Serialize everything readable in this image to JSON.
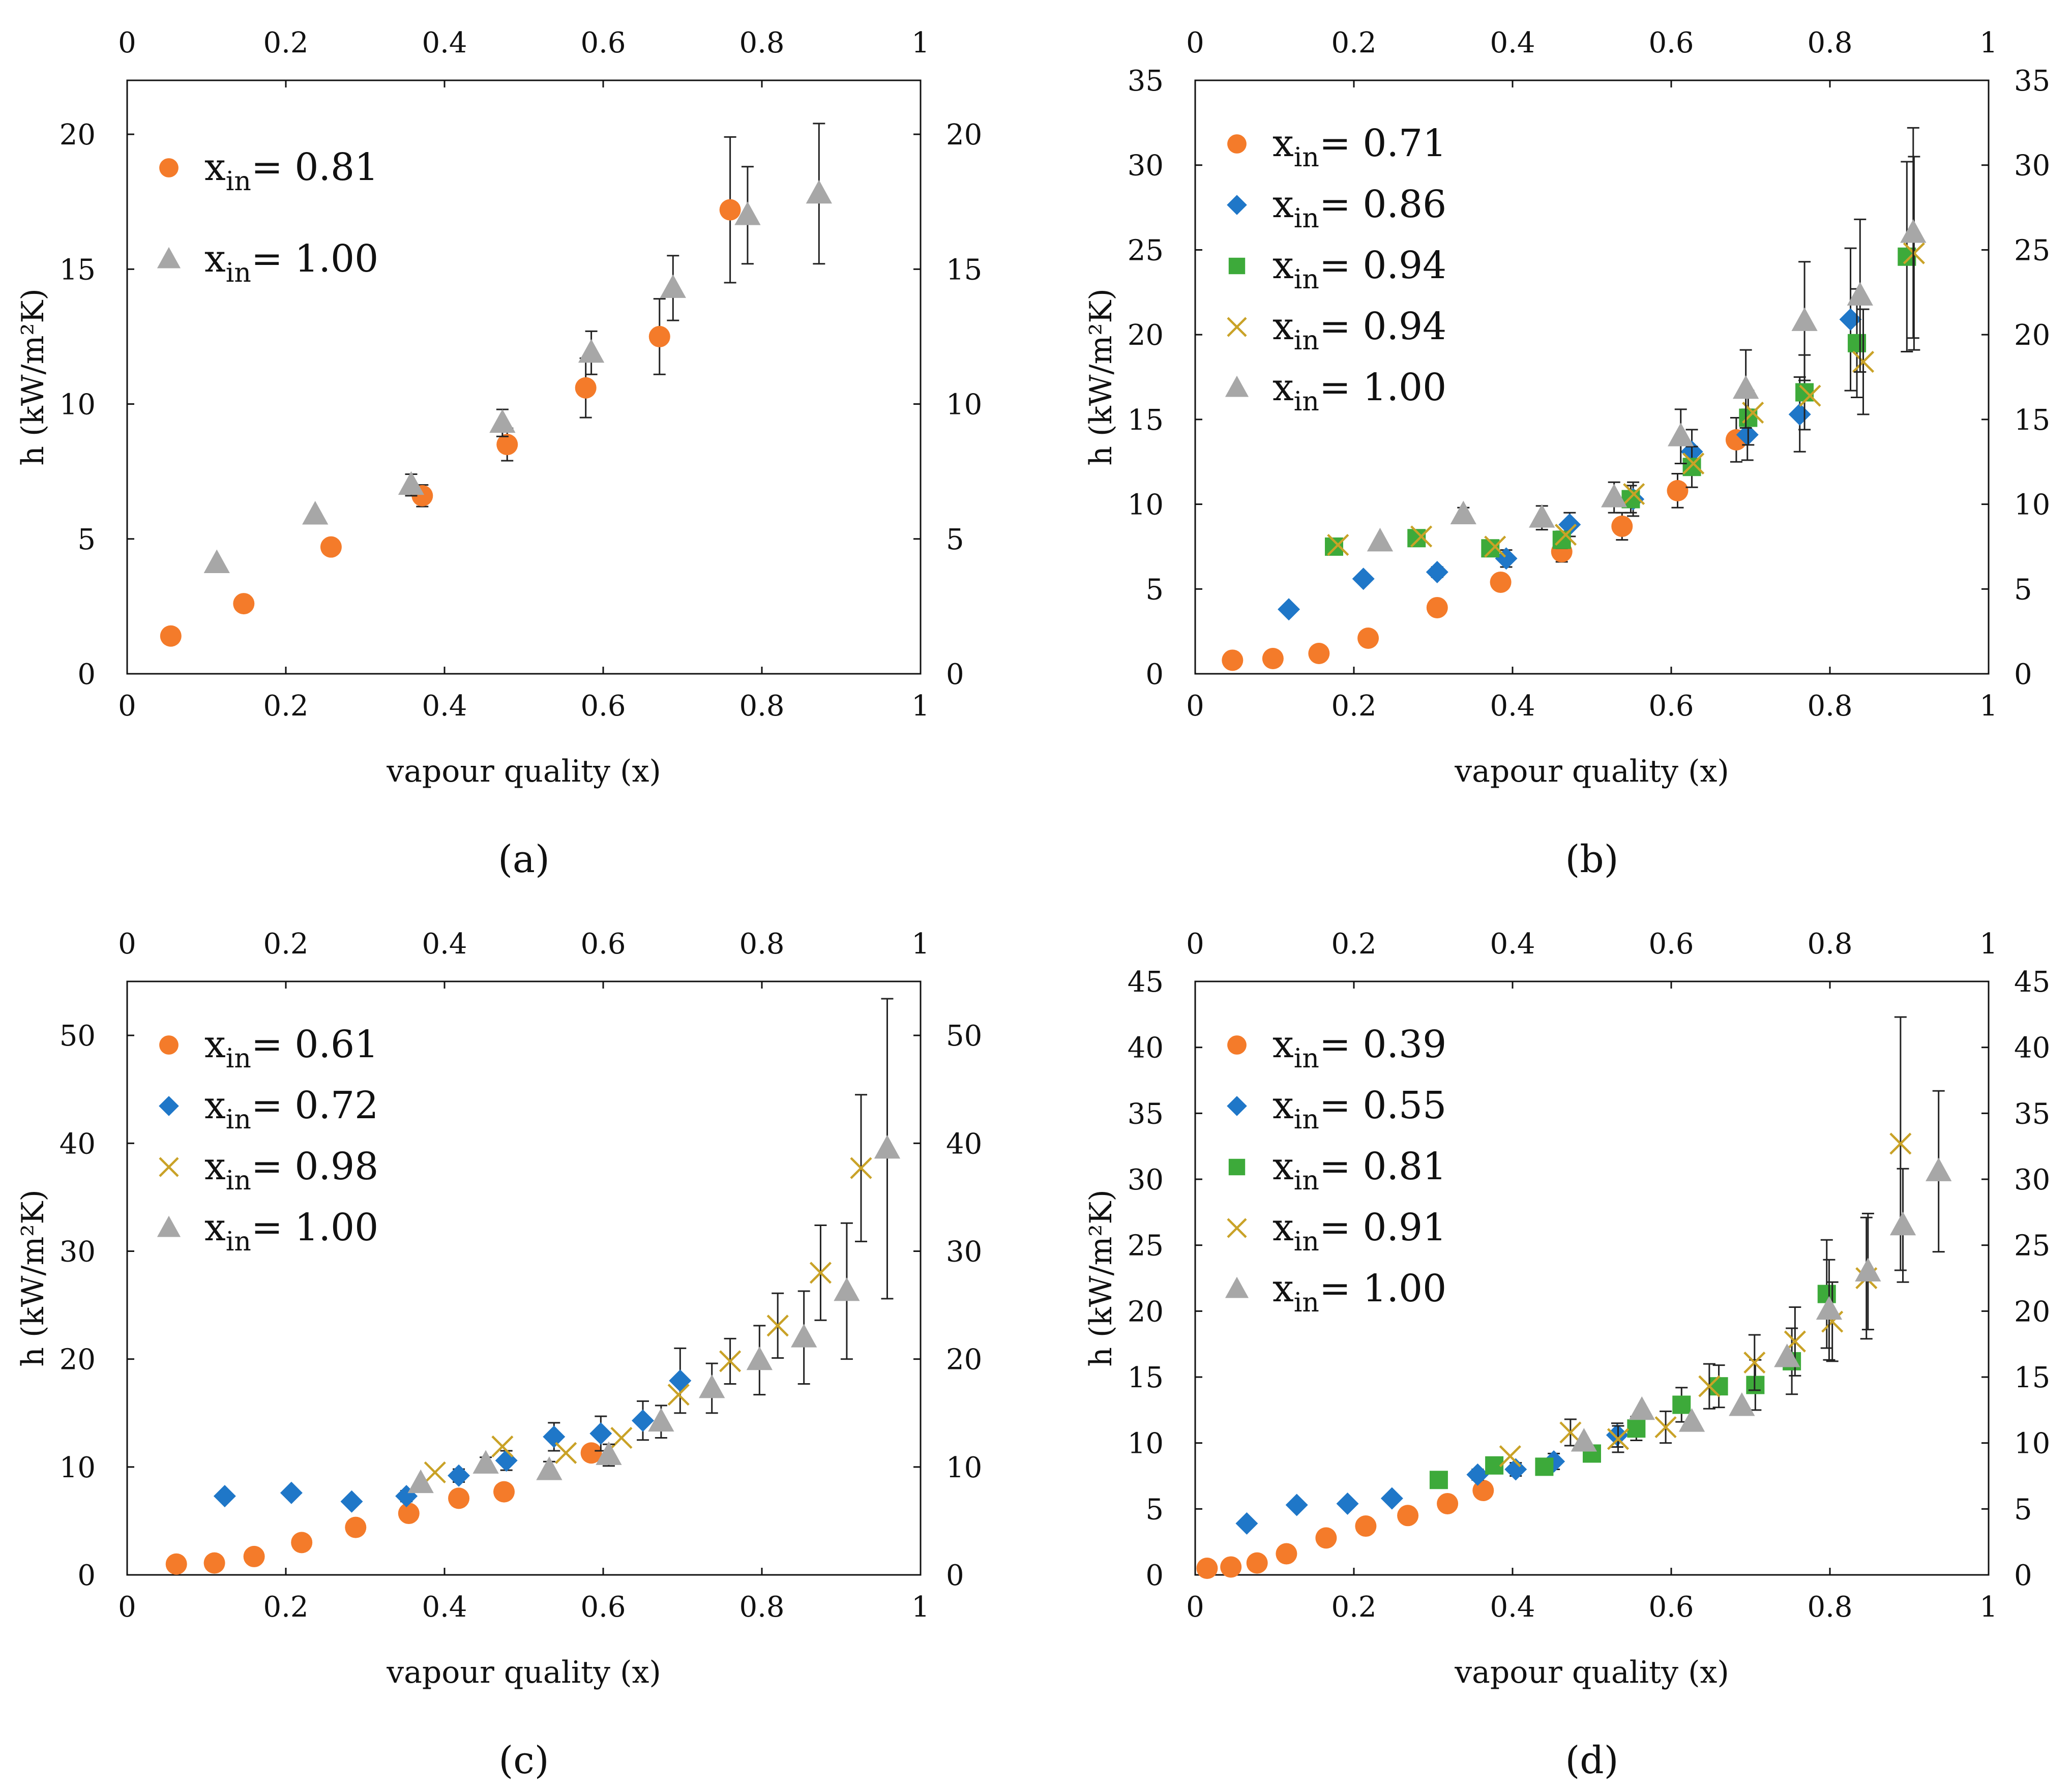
{
  "marker_colors": {
    "circle": "#F47B2A",
    "diamond": "#1F77C8",
    "square": "#3DAA3A",
    "cross": "#C9A227",
    "triangle": "#A7A7A7"
  },
  "chart_data": [
    {
      "type": "scatter",
      "panel": "a",
      "panel_label": "(a)",
      "xlabel": "vapour quality (x)",
      "ylabel": "h (kW/m²K)",
      "xlim": [
        0,
        1
      ],
      "ylim": [
        0,
        22
      ],
      "xticks": [
        0,
        0.2,
        0.4,
        0.6,
        0.8,
        1
      ],
      "yticks": [
        0,
        5,
        10,
        15,
        20
      ],
      "xtick_labels": [
        "0",
        "0.2",
        "0.4",
        "0.6",
        "0.8",
        "1"
      ],
      "ytick_labels": [
        "0",
        "5",
        "10",
        "15",
        "20"
      ],
      "legend_position": "top-left",
      "series": [
        {
          "marker": "circle",
          "legend_main": "x",
          "legend_sub": "in",
          "legend_value": "= 0.81",
          "x": [
            0.055,
            0.147,
            0.257,
            0.372,
            0.479,
            0.578,
            0.671,
            0.76
          ],
          "y": [
            1.4,
            2.6,
            4.7,
            6.6,
            8.5,
            10.6,
            12.5,
            17.2
          ],
          "err": [
            0,
            0,
            0.2,
            0.4,
            0.6,
            1.1,
            1.4,
            2.7
          ]
        },
        {
          "marker": "triangle",
          "legend_main": "x",
          "legend_sub": "in",
          "legend_value": "= 1.00",
          "x": [
            0.113,
            0.237,
            0.358,
            0.473,
            0.585,
            0.688,
            0.782,
            0.872
          ],
          "y": [
            4.1,
            5.9,
            7.0,
            9.3,
            11.9,
            14.3,
            17.0,
            17.8
          ],
          "err": [
            0,
            0,
            0.4,
            0.5,
            0.8,
            1.2,
            1.8,
            2.6
          ]
        }
      ]
    },
    {
      "type": "scatter",
      "panel": "b",
      "panel_label": "(b)",
      "xlabel": "vapour quality (x)",
      "ylabel": "h (kW/m²K)",
      "xlim": [
        0,
        1
      ],
      "ylim": [
        0,
        35
      ],
      "xticks": [
        0,
        0.2,
        0.4,
        0.6,
        0.8,
        1
      ],
      "yticks": [
        0,
        5,
        10,
        15,
        20,
        25,
        30,
        35
      ],
      "xtick_labels": [
        "0",
        "0.2",
        "0.4",
        "0.6",
        "0.8",
        "1"
      ],
      "ytick_labels": [
        "0",
        "5",
        "10",
        "15",
        "20",
        "25",
        "30",
        "35"
      ],
      "legend_position": "top-left",
      "series": [
        {
          "marker": "circle",
          "legend_main": "x",
          "legend_sub": "in",
          "legend_value": "= 0.71",
          "x": [
            0.047,
            0.098,
            0.156,
            0.218,
            0.305,
            0.385,
            0.462,
            0.538,
            0.608,
            0.682
          ],
          "y": [
            0.8,
            0.9,
            1.2,
            2.1,
            3.9,
            5.4,
            7.2,
            8.7,
            10.8,
            13.8
          ],
          "err": [
            0,
            0,
            0,
            0,
            0,
            0,
            0.6,
            0.8,
            1.0,
            1.3
          ]
        },
        {
          "marker": "diamond",
          "legend_main": "x",
          "legend_sub": "in",
          "legend_value": "= 0.86",
          "x": [
            0.118,
            0.212,
            0.305,
            0.392,
            0.472,
            0.552,
            0.626,
            0.696,
            0.762,
            0.826
          ],
          "y": [
            3.8,
            5.6,
            6.0,
            6.8,
            8.8,
            10.3,
            13.1,
            14.1,
            15.3,
            20.9
          ],
          "err": [
            0,
            0,
            0.3,
            0.5,
            0.7,
            1.0,
            1.3,
            1.5,
            2.2,
            4.2
          ]
        },
        {
          "marker": "square",
          "legend_main": "x",
          "legend_sub": "in",
          "legend_value": "= 0.94",
          "x": [
            0.175,
            0.279,
            0.372,
            0.462,
            0.549,
            0.626,
            0.697,
            0.768,
            0.834,
            0.897
          ],
          "y": [
            7.5,
            8.0,
            7.4,
            7.9,
            10.3,
            12.2,
            15.1,
            16.6,
            19.5,
            24.6
          ],
          "err": [
            0,
            0,
            0.4,
            0.5,
            0.8,
            1.2,
            1.6,
            2.2,
            3.2,
            5.6
          ]
        },
        {
          "marker": "cross",
          "legend_main": "x",
          "legend_sub": "in",
          "legend_value": "= 0.94",
          "x": [
            0.18,
            0.285,
            0.378,
            0.467,
            0.553,
            0.628,
            0.703,
            0.775,
            0.842,
            0.906
          ],
          "y": [
            7.6,
            8.1,
            7.5,
            8.2,
            10.6,
            12.4,
            15.4,
            16.4,
            18.4,
            24.8
          ],
          "err": [
            0,
            0,
            0,
            0,
            0,
            0,
            0,
            0,
            3.1,
            5.7
          ]
        },
        {
          "marker": "triangle",
          "legend_main": "x",
          "legend_sub": "in",
          "legend_value": "= 1.00",
          "x": [
            0.233,
            0.338,
            0.437,
            0.528,
            0.612,
            0.694,
            0.768,
            0.838,
            0.905
          ],
          "y": [
            7.8,
            9.4,
            9.2,
            10.4,
            14.0,
            16.8,
            20.8,
            22.3,
            26.0
          ],
          "err": [
            0,
            0.4,
            0.7,
            0.9,
            1.6,
            2.3,
            3.5,
            4.5,
            6.2
          ]
        }
      ]
    },
    {
      "type": "scatter",
      "panel": "c",
      "panel_label": "(c)",
      "xlabel": "vapour quality (x)",
      "ylabel": "h (kW/m²K)",
      "xlim": [
        0,
        1
      ],
      "ylim": [
        0,
        55
      ],
      "xticks": [
        0,
        0.2,
        0.4,
        0.6,
        0.8,
        1
      ],
      "yticks": [
        0,
        10,
        20,
        30,
        40,
        50
      ],
      "xtick_labels": [
        "0",
        "0.2",
        "0.4",
        "0.6",
        "0.8",
        "1"
      ],
      "ytick_labels": [
        "0",
        "10",
        "20",
        "30",
        "40",
        "50"
      ],
      "legend_position": "top-left",
      "series": [
        {
          "marker": "circle",
          "legend_main": "x",
          "legend_sub": "in",
          "legend_value": "= 0.61",
          "x": [
            0.062,
            0.11,
            0.16,
            0.22,
            0.288,
            0.355,
            0.418,
            0.475,
            0.585
          ],
          "y": [
            1.0,
            1.1,
            1.7,
            3.0,
            4.4,
            5.7,
            7.1,
            7.7,
            11.3
          ],
          "err": [
            0,
            0,
            0,
            0,
            0,
            0,
            0,
            0,
            0
          ]
        },
        {
          "marker": "diamond",
          "legend_main": "x",
          "legend_sub": "in",
          "legend_value": "= 0.72",
          "x": [
            0.123,
            0.207,
            0.283,
            0.352,
            0.418,
            0.478,
            0.538,
            0.597,
            0.65,
            0.697
          ],
          "y": [
            7.3,
            7.6,
            6.8,
            7.3,
            9.2,
            10.6,
            12.8,
            13.1,
            14.3,
            18.0
          ],
          "err": [
            0,
            0,
            0,
            0.5,
            0.6,
            0.9,
            1.3,
            1.6,
            1.8,
            3.0
          ]
        },
        {
          "marker": "cross",
          "legend_main": "x",
          "legend_sub": "in",
          "legend_value": "= 0.98",
          "x": [
            0.388,
            0.473,
            0.553,
            0.623,
            0.695,
            0.76,
            0.82,
            0.874,
            0.925
          ],
          "y": [
            9.5,
            11.9,
            11.3,
            12.7,
            16.7,
            19.8,
            23.1,
            28.0,
            37.7
          ],
          "err": [
            0,
            0,
            0,
            0,
            0,
            2.1,
            3.0,
            4.4,
            6.8
          ]
        },
        {
          "marker": "triangle",
          "legend_main": "x",
          "legend_sub": "in",
          "legend_value": "= 1.00",
          "x": [
            0.37,
            0.452,
            0.532,
            0.607,
            0.673,
            0.737,
            0.797,
            0.853,
            0.907,
            0.958
          ],
          "y": [
            8.5,
            10.3,
            9.7,
            11.1,
            14.2,
            17.3,
            19.9,
            22.0,
            26.3,
            39.5
          ],
          "err": [
            0,
            0.6,
            0.8,
            1.0,
            1.5,
            2.3,
            3.2,
            4.3,
            6.3,
            13.9
          ]
        }
      ]
    },
    {
      "type": "scatter",
      "panel": "d",
      "panel_label": "(d)",
      "xlabel": "vapour quality (x)",
      "ylabel": "h (kW/m²K)",
      "xlim": [
        0,
        1
      ],
      "ylim": [
        0,
        45
      ],
      "xticks": [
        0,
        0.2,
        0.4,
        0.6,
        0.8,
        1
      ],
      "yticks": [
        0,
        5,
        10,
        15,
        20,
        25,
        30,
        35,
        40,
        45
      ],
      "xtick_labels": [
        "0",
        "0.2",
        "0.4",
        "0.6",
        "0.8",
        "1"
      ],
      "ytick_labels": [
        "0",
        "5",
        "10",
        "15",
        "20",
        "25",
        "30",
        "35",
        "40",
        "45"
      ],
      "legend_position": "top-left",
      "series": [
        {
          "marker": "circle",
          "legend_main": "x",
          "legend_sub": "in",
          "legend_value": "= 0.39",
          "x": [
            0.015,
            0.045,
            0.078,
            0.115,
            0.165,
            0.215,
            0.268,
            0.318,
            0.363
          ],
          "y": [
            0.5,
            0.6,
            0.9,
            1.6,
            2.8,
            3.7,
            4.5,
            5.4,
            6.4
          ],
          "err": [
            0,
            0,
            0,
            0,
            0,
            0,
            0,
            0,
            0
          ]
        },
        {
          "marker": "diamond",
          "legend_main": "x",
          "legend_sub": "in",
          "legend_value": "= 0.55",
          "x": [
            0.065,
            0.128,
            0.192,
            0.248,
            0.356,
            0.404,
            0.452,
            0.532
          ],
          "y": [
            3.9,
            5.3,
            5.4,
            5.8,
            7.6,
            8.0,
            8.6,
            10.6
          ],
          "err": [
            0,
            0,
            0,
            0,
            0.4,
            0.5,
            0.6,
            0.9
          ]
        },
        {
          "marker": "square",
          "legend_main": "x",
          "legend_sub": "in",
          "legend_value": "= 0.81",
          "x": [
            0.307,
            0.377,
            0.44,
            0.5,
            0.556,
            0.613,
            0.66,
            0.706,
            0.752,
            0.796
          ],
          "y": [
            7.2,
            8.3,
            8.2,
            9.2,
            11.1,
            12.9,
            14.3,
            14.4,
            16.2,
            21.3
          ],
          "err": [
            0,
            0,
            0,
            0.6,
            0.9,
            1.3,
            1.6,
            1.9,
            2.5,
            4.1
          ]
        },
        {
          "marker": "cross",
          "legend_main": "x",
          "legend_sub": "in",
          "legend_value": "= 0.91",
          "x": [
            0.397,
            0.473,
            0.533,
            0.593,
            0.648,
            0.705,
            0.756,
            0.803,
            0.846,
            0.889
          ],
          "y": [
            9.0,
            10.8,
            10.3,
            11.2,
            14.3,
            16.1,
            17.7,
            19.2,
            22.5,
            32.7
          ],
          "err": [
            0,
            1.0,
            1.0,
            1.2,
            1.7,
            2.1,
            2.6,
            3.0,
            4.6,
            9.6
          ]
        },
        {
          "marker": "triangle",
          "legend_main": "x",
          "legend_sub": "in",
          "legend_value": "= 1.00",
          "x": [
            0.49,
            0.563,
            0.626,
            0.689,
            0.746,
            0.799,
            0.848,
            0.892,
            0.937
          ],
          "y": [
            10.1,
            12.5,
            11.6,
            12.8,
            16.5,
            20.1,
            23.0,
            26.5,
            30.6
          ],
          "err": [
            0,
            0,
            0,
            0,
            0,
            3.8,
            4.4,
            4.3,
            6.1
          ]
        }
      ]
    }
  ]
}
